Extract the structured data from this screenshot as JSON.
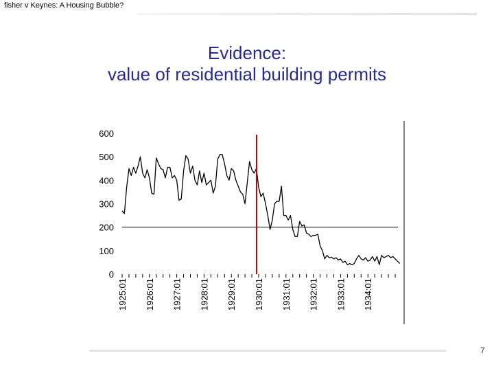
{
  "header": {
    "text": "fisher v Keynes: A Housing Bubble?"
  },
  "slide": {
    "title_line1": "Evidence:",
    "title_line2": "value of residential building permits",
    "page_number": "7"
  },
  "chart_data": {
    "type": "line",
    "title": "",
    "xlabel": "",
    "ylabel": "",
    "ylim": [
      0,
      600
    ],
    "yticks": [
      0,
      100,
      200,
      300,
      400,
      500,
      600
    ],
    "xticks": [
      "1925:01",
      "1926:01",
      "1927:01",
      "1928:01",
      "1929:01",
      "1930:01",
      "1931:01",
      "1932:01",
      "1933:01",
      "1934:01"
    ],
    "grid": false,
    "reference_line_y": 200,
    "highlight_line_x": "1930:01",
    "highlight_color": "#cc0000",
    "line_color": "#000000",
    "series": [
      {
        "values": [
          270,
          258,
          370,
          450,
          420,
          455,
          430,
          460,
          500,
          430,
          410,
          445,
          410,
          345,
          340,
          495,
          470,
          450,
          445,
          410,
          455,
          455,
          410,
          420,
          400,
          315,
          320,
          440,
          505,
          490,
          430,
          460,
          400,
          380,
          440,
          390,
          430,
          380,
          390,
          400,
          345,
          375,
          490,
          510,
          510,
          470,
          420,
          400,
          450,
          440,
          400,
          375,
          350,
          340,
          300,
          390,
          480,
          445,
          430,
          450,
          370,
          330,
          345,
          300,
          250,
          190,
          230,
          300,
          310,
          310,
          375,
          250,
          250,
          230,
          250,
          190,
          160,
          160,
          225,
          205,
          210,
          175,
          170,
          160,
          165,
          165,
          170,
          120,
          100,
          65,
          80,
          70,
          72,
          65,
          70,
          60,
          65,
          50,
          55,
          40,
          45,
          40,
          45,
          65,
          80,
          65,
          60,
          70,
          55,
          60,
          75,
          55,
          75,
          40,
          80,
          70,
          75,
          80,
          70,
          75,
          65,
          55,
          45
        ]
      }
    ]
  }
}
